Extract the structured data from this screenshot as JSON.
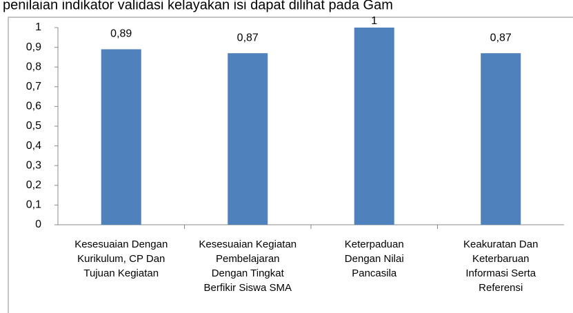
{
  "caption": "penilaian indikator validasi kelayakan isi dapat dilihat pada Gam",
  "chart_data": {
    "type": "bar",
    "categories": [
      "Kesesuaian Dengan\nKurikulum, CP Dan\nTujuan Kegiatan",
      "Kesesuaian Kegiatan\nPembelajaran\nDengan Tingkat\nBerfikir Siswa SMA",
      "Keterpaduan\nDengan Nilai\nPancasila",
      "Keakuratan Dan\nKeterbaruan\nInformasi Serta\nReferensi"
    ],
    "values": [
      0.89,
      0.87,
      1,
      0.87
    ],
    "value_labels": [
      "0,89",
      "0,87",
      "1",
      "0,87"
    ],
    "color": "#4f81bd",
    "ylim": [
      0,
      1
    ],
    "yticks": [
      0,
      {
        "value": 0.1,
        "label": "0,1"
      },
      {
        "value": 0.2,
        "label": "0,2"
      },
      {
        "value": 0.3,
        "label": "0,3"
      },
      {
        "value": 0.4,
        "label": "0,4"
      },
      {
        "value": 0.5,
        "label": "0,5"
      },
      {
        "value": 0.6,
        "label": "0,6"
      },
      {
        "value": 0.7,
        "label": "0,7"
      },
      {
        "value": 0.8,
        "label": "0,8"
      },
      {
        "value": 0.9,
        "label": "0,9"
      },
      1
    ],
    "grid": false
  }
}
